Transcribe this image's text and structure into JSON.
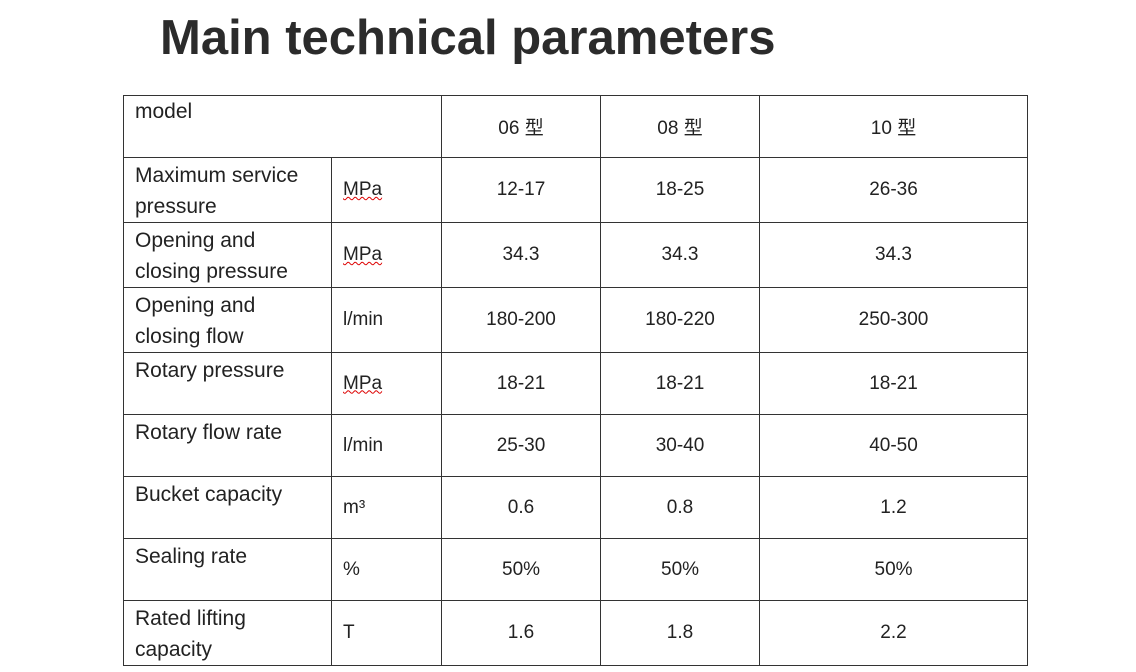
{
  "header": {
    "title": "Main technical parameters"
  },
  "table": {
    "header": [
      "model",
      "06 型",
      "08 型",
      "10 型"
    ],
    "rows": [
      [
        "Maximum service pressure",
        "MPa",
        "12-17",
        "18-25",
        "26-36"
      ],
      [
        "Opening and closing pressure",
        "MPa",
        "34.3",
        "34.3",
        "34.3"
      ],
      [
        "Opening and closing flow",
        "l/min",
        "180-200",
        "180-220",
        "250-300"
      ],
      [
        "Rotary pressure",
        "MPa",
        "18-21",
        "18-21",
        "18-21"
      ],
      [
        "Rotary flow rate",
        "l/min",
        "25-30",
        "30-40",
        "40-50"
      ],
      [
        "Bucket capacity",
        "m³",
        "0.6",
        "0.8",
        "1.2"
      ],
      [
        "Sealing rate",
        "%",
        "50%",
        "50%",
        "50%"
      ],
      [
        "Rated lifting capacity",
        "T",
        "1.6",
        "1.8",
        "2.2"
      ]
    ]
  }
}
